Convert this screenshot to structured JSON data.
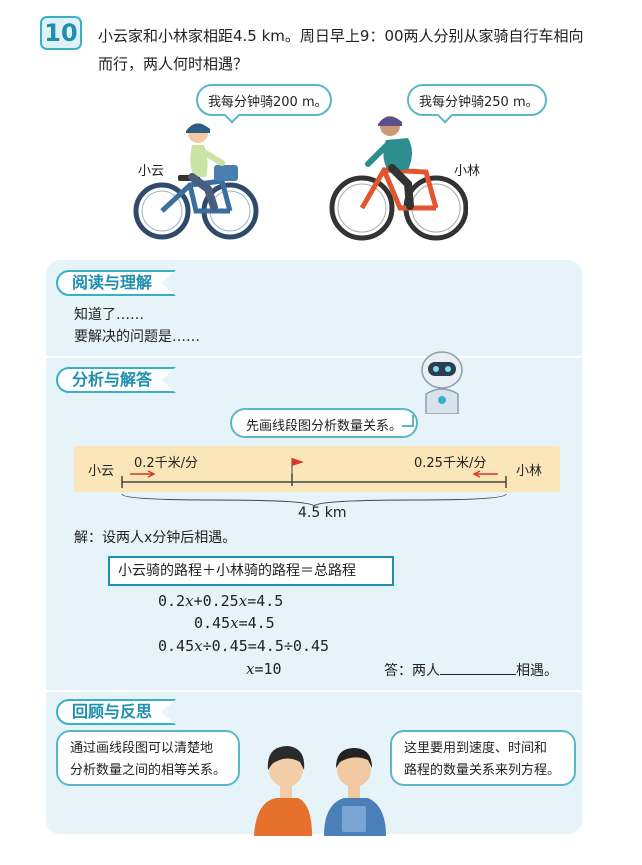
{
  "problem": {
    "number": "10",
    "text": "小云家和小林家相距4.5 km。周日早上9：00两人分别从家骑自行车相向而行，两人何时相遇？"
  },
  "illustration": {
    "bubble_left": "我每分钟骑200 m。",
    "bubble_right": "我每分钟骑250 m。",
    "name_left": "小云",
    "name_right": "小林"
  },
  "read": {
    "heading": "阅读与理解",
    "line1": "知道了……",
    "line2": "要解决的问题是……"
  },
  "analyze": {
    "heading": "分析与解答",
    "robot_bubble": "先画线段图分析数量关系。",
    "diagram": {
      "left_name": "小云",
      "right_name": "小林",
      "left_speed": "0.2千米/分",
      "right_speed": "0.25千米/分",
      "total": "4.5 km"
    },
    "solution_intro": "解：设两人x分钟后相遇。",
    "relation": "小云骑的路程＋小林骑的路程＝总路程",
    "steps": {
      "s1_a": "0.2",
      "s1_b": "+0.25",
      "s1_c": "=4.5",
      "s2_a": "0.45",
      "s2_b": "=4.5",
      "s3_a": "0.45",
      "s3_b": "÷0.45=4.5÷0.45",
      "s4_b": "=10"
    },
    "var": "x",
    "answer_prefix": "答：两人",
    "answer_suffix": "相遇。"
  },
  "review": {
    "heading": "回顾与反思",
    "left_bubble_l1": "通过画线段图可以清楚地",
    "left_bubble_l2": "分析数量之间的相等关系。",
    "right_bubble_l1": "这里要用到速度、时间和",
    "right_bubble_l2": "路程的数量关系来列方程。"
  },
  "colors": {
    "accent": "#3ab0c8",
    "panel_bg": "#e6f4fa",
    "diagram_bg": "#fbe6ba",
    "arrow_red": "#d9362b"
  }
}
